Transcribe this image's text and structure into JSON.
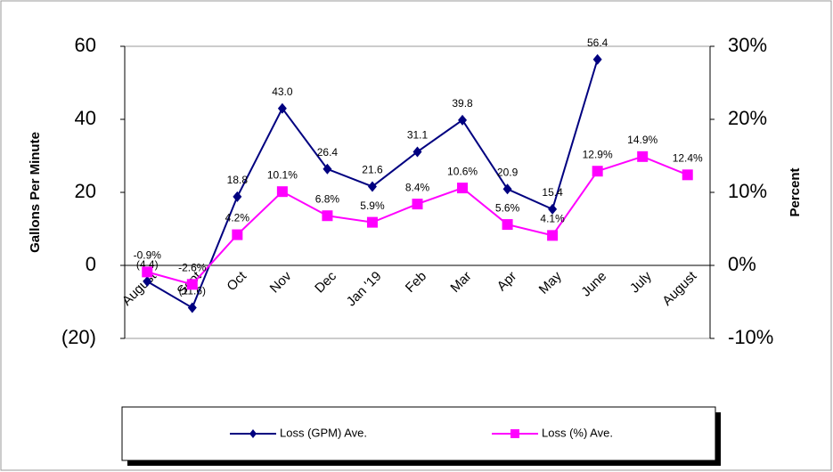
{
  "chart_data": {
    "type": "line",
    "categories": [
      "August",
      "Sept",
      "Oct",
      "Nov",
      "Dec",
      "Jan '19",
      "Feb",
      "Mar",
      "Apr",
      "May",
      "June",
      "July",
      "August"
    ],
    "y_label": "Gallons Per Minute",
    "y2_label": "Percent",
    "ylim": [
      -20,
      60
    ],
    "yticks": [
      {
        "value": -20,
        "label": "(20)"
      },
      0,
      20,
      40,
      60
    ],
    "y2lim": [
      -10,
      30
    ],
    "y2ticks": [
      {
        "value": -10,
        "label": "-10%"
      },
      {
        "value": 0,
        "label": "0%"
      },
      {
        "value": 10,
        "label": "10%"
      },
      {
        "value": 20,
        "label": "20%"
      },
      {
        "value": 30,
        "label": "30%"
      }
    ],
    "series": [
      {
        "name": "Loss (GPM) Ave.",
        "color": "#000080",
        "marker": "diamond",
        "values": [
          -4.4,
          -11.6,
          18.8,
          43.0,
          26.4,
          21.6,
          31.1,
          39.8,
          20.9,
          15.4,
          56.4,
          null,
          null
        ],
        "value_labels": [
          "(4.4)",
          "(11.6)",
          "18.8",
          "43.0",
          "26.4",
          "21.6",
          "31.1",
          "39.8",
          "20.9",
          "15.4",
          "56.4",
          null,
          null
        ]
      },
      {
        "name": "Loss (%) Ave.",
        "color": "#ff00ff",
        "marker": "square",
        "axis": "y2",
        "values": [
          -0.9,
          -2.6,
          4.2,
          10.1,
          6.8,
          5.9,
          8.4,
          10.6,
          5.6,
          4.1,
          12.9,
          14.9,
          12.4
        ],
        "value_labels": [
          "-0.9%",
          "-2.6%",
          "4.2%",
          "10.1%",
          "6.8%",
          "5.9%",
          "8.4%",
          "10.6%",
          "5.6%",
          "4.1%",
          "12.9%",
          "14.9%",
          "12.4%"
        ]
      }
    ]
  }
}
